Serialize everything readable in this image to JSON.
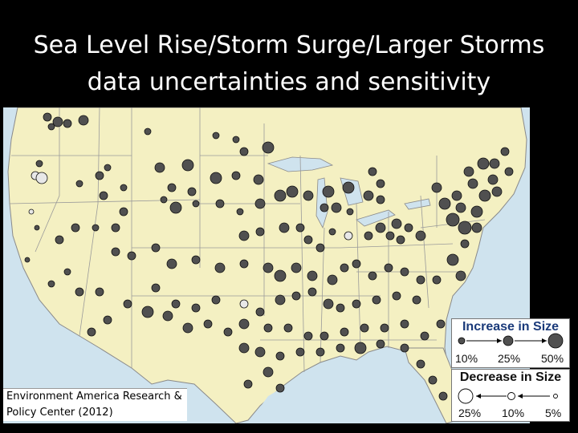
{
  "title": {
    "line1": "Sea Level Rise/Storm Surge/Larger Storms",
    "line2": "data uncertainties and sensitivity"
  },
  "credit": {
    "line1": "Environment America Research &",
    "line2": "Policy Center (2012)"
  },
  "legend": {
    "increase": {
      "title": "Increase in Size",
      "labels": [
        "10%",
        "25%",
        "50%"
      ]
    },
    "decrease": {
      "title": "Decrease in Size",
      "labels": [
        "25%",
        "10%",
        "5%"
      ]
    }
  },
  "colors": {
    "land": "#f4f0c2",
    "water": "#cfe3ee",
    "state_border": "#9a9a9a",
    "increase_marker": "#505050",
    "decrease_marker": "#e8e8e8"
  }
}
